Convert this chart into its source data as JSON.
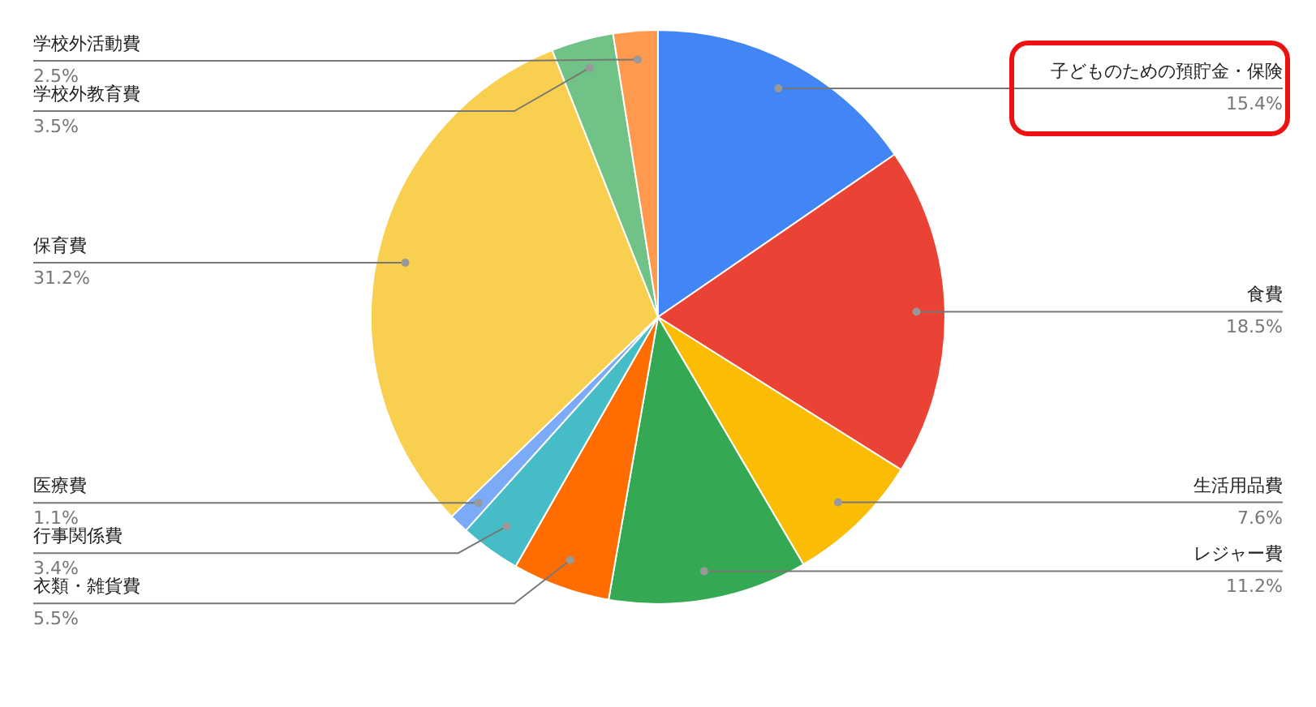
{
  "chart_data": {
    "type": "pie",
    "categories": [
      "子どものための預貯金・保険",
      "食費",
      "生活用品費",
      "レジャー費",
      "衣類・雑貨費",
      "行事関係費",
      "医療費",
      "保育費",
      "学校外教育費",
      "学校外活動費"
    ],
    "values": [
      15.4,
      18.5,
      7.6,
      11.2,
      5.5,
      3.4,
      1.1,
      31.2,
      3.5,
      2.5
    ],
    "colors": [
      "#4285f4",
      "#ea4335",
      "#fbbc04",
      "#34a853",
      "#ff6d01",
      "#46bdc6",
      "#7baaf7",
      "#f9cf4f",
      "#71c287",
      "#ff994d"
    ],
    "value_labels": [
      "15.4%",
      "18.5%",
      "7.6%",
      "11.2%",
      "5.5%",
      "3.4%",
      "1.1%",
      "31.2%",
      "3.5%",
      "2.5%"
    ]
  }
}
